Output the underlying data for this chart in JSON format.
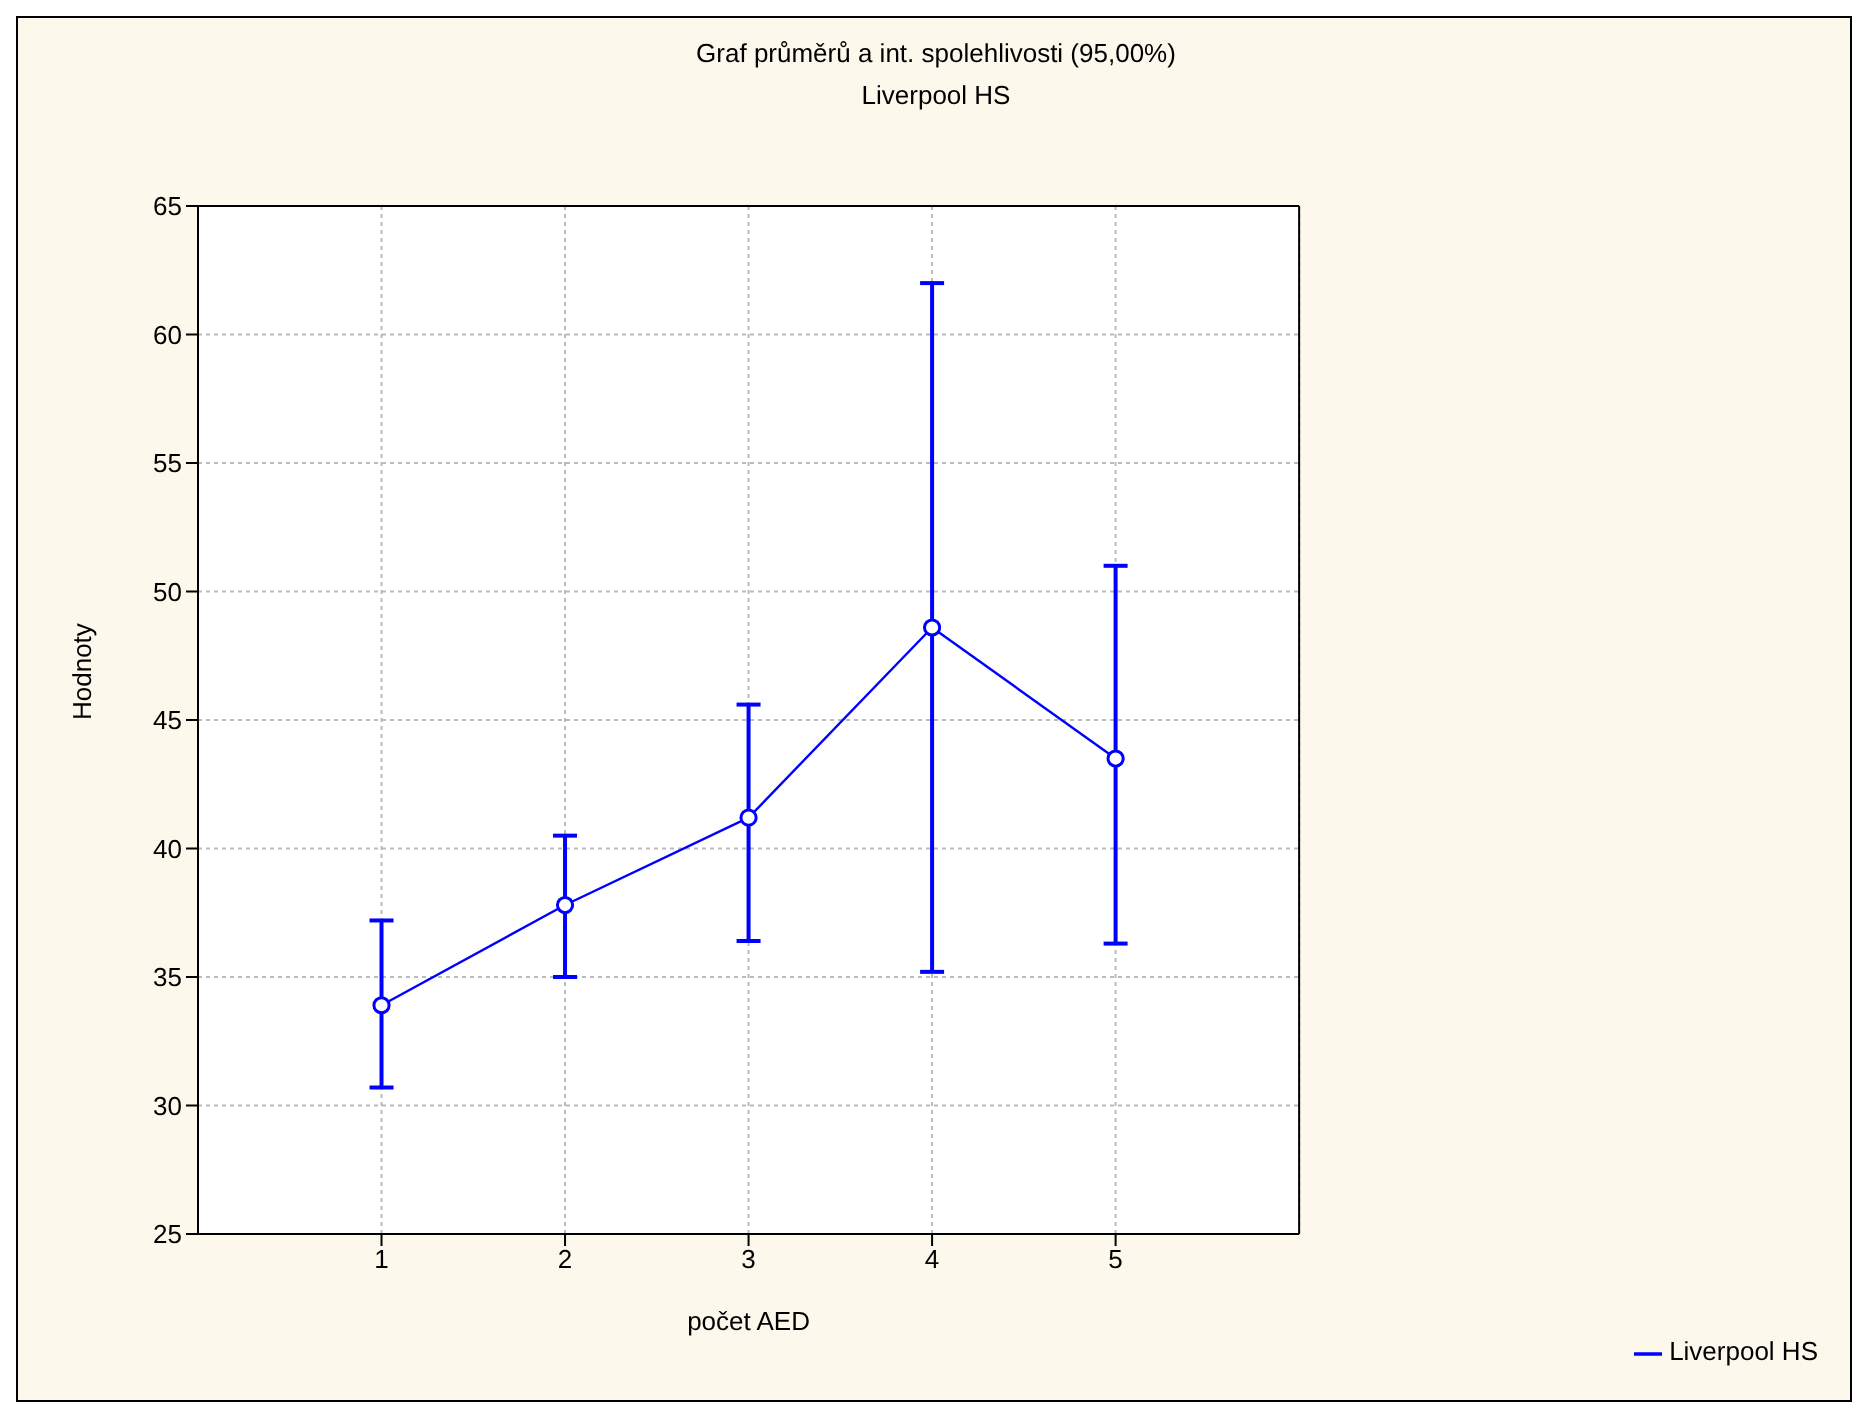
{
  "chart_data": {
    "type": "line",
    "title": "Graf průměrů a int. spolehlivosti (95,00%)",
    "subtitle": "Liverpool HS",
    "xlabel": "počet AED",
    "ylabel": "Hodnoty",
    "categories": [
      "1",
      "2",
      "3",
      "4",
      "5"
    ],
    "series": [
      {
        "name": "Liverpool HS",
        "color": "#0000ff",
        "values": [
          33.9,
          37.8,
          41.2,
          48.6,
          43.5
        ],
        "errors": [
          [
            30.7,
            37.2
          ],
          [
            35.0,
            40.5
          ],
          [
            36.4,
            45.6
          ],
          [
            35.2,
            62.0
          ],
          [
            36.3,
            51.0
          ]
        ]
      }
    ],
    "ylim": [
      25,
      65
    ],
    "yticks": [
      25,
      30,
      35,
      40,
      45,
      50,
      55,
      60,
      65
    ],
    "grid": true,
    "legend": "bottom right",
    "marker": "circle",
    "line_style": "solid"
  }
}
